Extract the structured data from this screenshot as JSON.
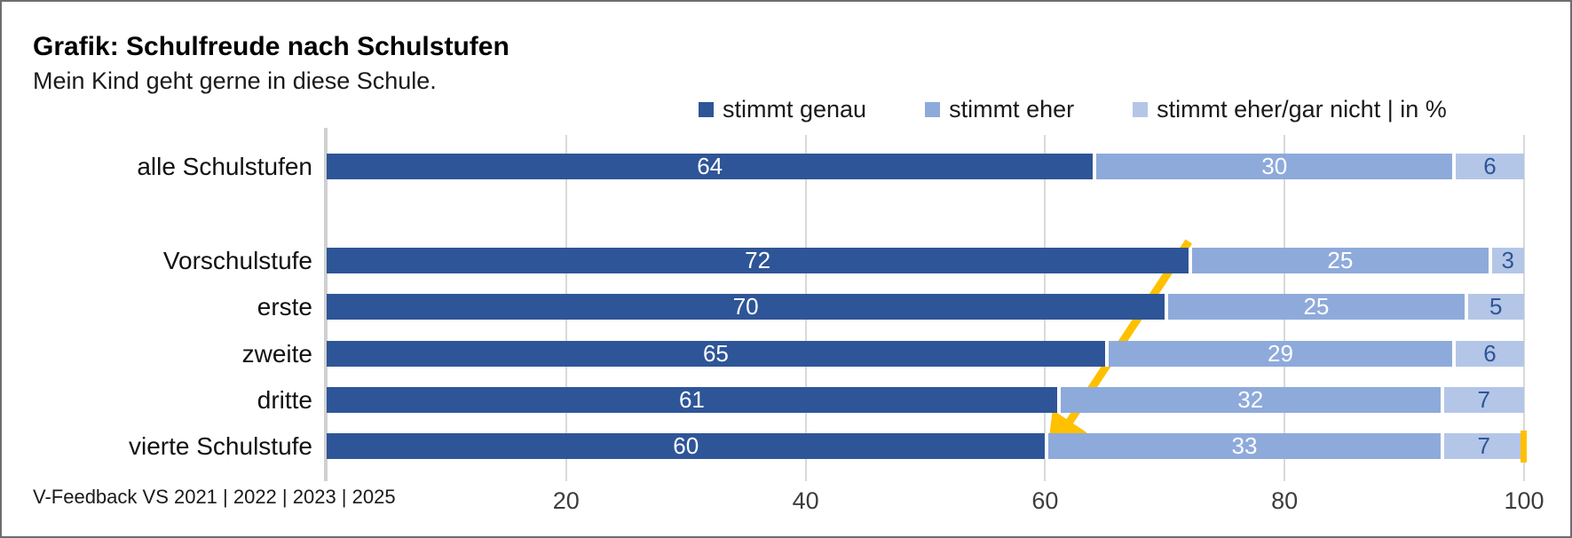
{
  "header": {
    "title": "Grafik: Schulfreude nach Schulstufen",
    "subtitle": "Mein Kind geht gerne in diese Schule."
  },
  "legend": [
    {
      "label": "stimmt genau",
      "color": "#2e5597"
    },
    {
      "label": "stimmt eher",
      "color": "#8eaadb"
    },
    {
      "label": "stimmt eher/gar nicht | in %",
      "color": "#b4c6e7"
    }
  ],
  "footer": {
    "source": "V-Feedback VS 2021 | 2022 | 2023 | 2025"
  },
  "colors": {
    "series1": "#2e5597",
    "series2": "#8eaadb",
    "series3": "#b4c6e7",
    "value_on_light": "#2e5597",
    "annotation": "#ffc000",
    "gridline": "#d9d9d9"
  },
  "chart_data": {
    "type": "bar",
    "orientation": "horizontal",
    "stacked": true,
    "unit": "%",
    "title": "Grafik: Schulfreude nach Schulstufen",
    "subtitle": "Mein Kind geht gerne in diese Schule.",
    "source": "V-Feedback VS 2021 | 2022 | 2023 | 2025",
    "categories": [
      "alle Schulstufen",
      "Vorschulstufe",
      "erste",
      "zweite",
      "dritte",
      "vierte Schulstufe"
    ],
    "series": [
      {
        "name": "stimmt genau",
        "color": "#2e5597",
        "values": [
          64,
          72,
          70,
          65,
          61,
          60
        ]
      },
      {
        "name": "stimmt eher",
        "color": "#8eaadb",
        "values": [
          30,
          25,
          25,
          29,
          32,
          33
        ]
      },
      {
        "name": "stimmt eher/gar nicht",
        "color": "#b4c6e7",
        "values": [
          6,
          3,
          5,
          6,
          7,
          7
        ]
      }
    ],
    "xticks": [
      20,
      40,
      60,
      80,
      100
    ],
    "xlim": [
      0,
      100
    ],
    "grid": true,
    "legend_position": "top",
    "gap_after_first_category": true,
    "annotations": {
      "trend_arrow": {
        "color": "#ffc000",
        "from": {
          "category": "Vorschulstufe",
          "value": 72
        },
        "to": {
          "category": "vierte Schulstufe",
          "value": 60
        }
      },
      "end_marker": {
        "category": "vierte Schulstufe",
        "value": 100,
        "color": "#ffc000"
      }
    }
  }
}
